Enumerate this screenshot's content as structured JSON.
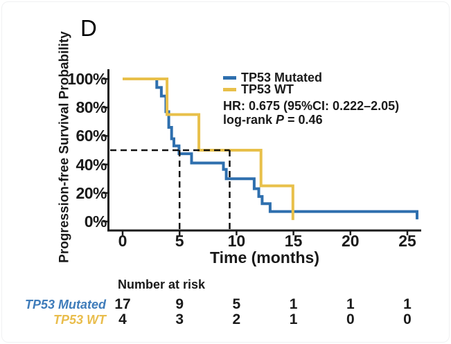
{
  "panel_label": "D",
  "colors": {
    "mutated_line": "#2e6fae",
    "wt_line": "#e8c04a",
    "mutated_label": "#3f7cba",
    "wt_label": "#e9bd4c",
    "axis": "#1a1a1a",
    "median_dash": "#111111"
  },
  "chart_data": {
    "type": "line",
    "subtype": "kaplan-meier-step-survival",
    "title": "",
    "xlabel": "Time (months)",
    "ylabel": "Progression-free Survival Probability",
    "xlim": [
      0,
      26.3
    ],
    "ylim_percent": [
      0,
      100
    ],
    "grid": false,
    "legend_position": "top-right-inside",
    "x_ticks": [
      0,
      5,
      10,
      15,
      20,
      25
    ],
    "y_tick_values": [
      100,
      80,
      60,
      40,
      20,
      0
    ],
    "y_tick_labels": [
      "100%",
      "80%",
      "60%",
      "40%",
      "20%",
      "0%"
    ],
    "series": [
      {
        "name": "TP53 Mutated",
        "color": "#2e6fae",
        "steps_time_percent": [
          [
            0,
            100
          ],
          [
            3.0,
            94
          ],
          [
            3.4,
            88
          ],
          [
            3.8,
            77
          ],
          [
            4.05,
            66
          ],
          [
            4.3,
            58
          ],
          [
            4.5,
            53
          ],
          [
            4.95,
            47.5
          ],
          [
            6.05,
            41
          ],
          [
            8.85,
            36.5
          ],
          [
            9.1,
            30
          ],
          [
            11.55,
            23
          ],
          [
            11.95,
            17.5
          ],
          [
            12.25,
            12.5
          ],
          [
            12.95,
            7
          ],
          [
            25.85,
            1.5
          ]
        ]
      },
      {
        "name": "TP53 WT",
        "color": "#e8c04a",
        "steps_time_percent": [
          [
            0,
            100
          ],
          [
            3.9,
            75
          ],
          [
            6.7,
            50
          ],
          [
            12.15,
            25
          ],
          [
            14.95,
            1
          ]
        ]
      }
    ],
    "median_indicators": {
      "survival_percent": 50,
      "horizontal_to_time": 9.4,
      "vertical_times": [
        5.0,
        9.4
      ]
    },
    "annotations": [
      "HR: 0.675 (95%CI: 0.222–2.05)",
      "log-rank P = 0.46"
    ]
  },
  "legend": {
    "items": [
      {
        "label": "TP53 Mutated"
      },
      {
        "label": "TP53 WT"
      }
    ]
  },
  "stats": {
    "hr": "HR: 0.675 (95%CI: 0.222–2.05)",
    "logrank_prefix": "log-rank ",
    "logrank_p": "P",
    "logrank_value": " = 0.46"
  },
  "risk_table": {
    "title": "Number at risk",
    "time_points": [
      0,
      5,
      10,
      15,
      20,
      25
    ],
    "rows": [
      {
        "label": "TP53 Mutated",
        "values": [
          "17",
          "9",
          "5",
          "1",
          "1",
          "1"
        ]
      },
      {
        "label": "TP53 WT",
        "values": [
          "4",
          "3",
          "2",
          "1",
          "0",
          "0"
        ]
      }
    ]
  }
}
